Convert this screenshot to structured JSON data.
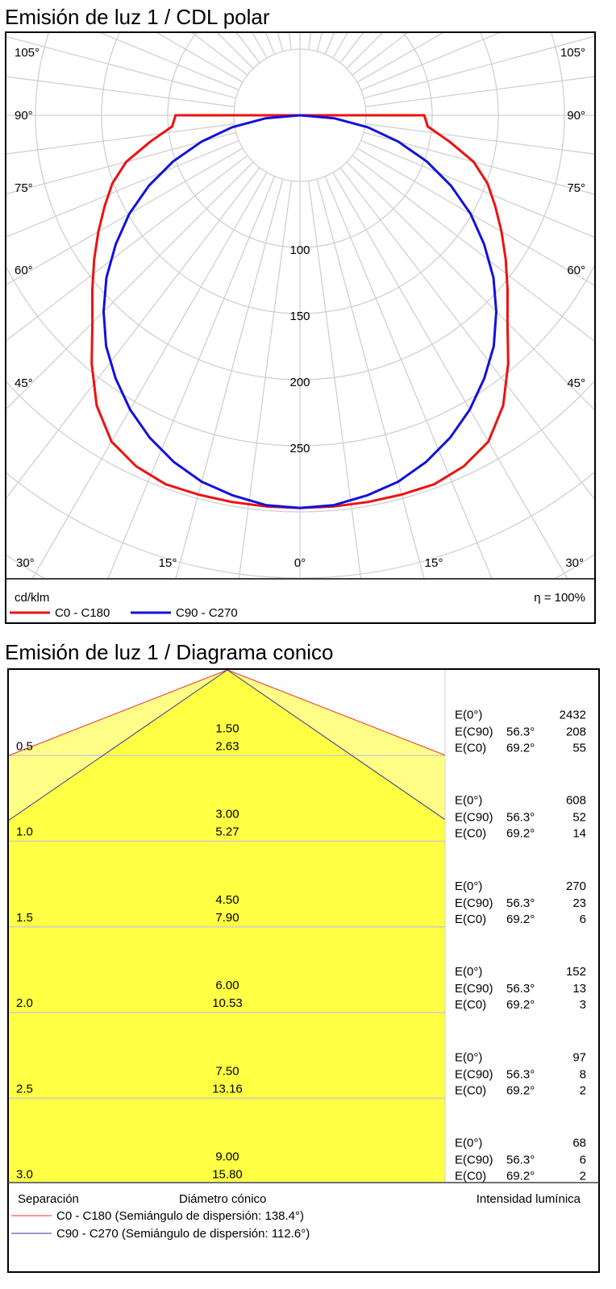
{
  "polar": {
    "title": "Emisión de luz 1 / CDL polar",
    "unit": "cd/klm",
    "efficiency": "η = 100%",
    "angle_labels": {
      "a105": "105°",
      "a90": "90°",
      "a75": "75°",
      "a60": "60°",
      "a45": "45°",
      "a30": "30°",
      "a15": "15°",
      "a0": "0°"
    },
    "radial_labels": [
      "100",
      "150",
      "200",
      "250"
    ],
    "legend": [
      {
        "label": "C0 - C180",
        "color": "#ee1111"
      },
      {
        "label": "C90 - C270",
        "color": "#1111dd"
      }
    ]
  },
  "chart_data": [
    {
      "type": "polar",
      "title": "Emisión de luz 1 / CDL polar",
      "unit": "cd/klm",
      "radial_ticks": [
        100,
        150,
        200,
        250
      ],
      "angle_ticks": [
        0,
        15,
        30,
        45,
        60,
        75,
        90,
        105
      ],
      "grid": true,
      "legend_placement": "bottom",
      "angles": [
        0,
        5,
        10,
        15,
        20,
        25,
        30,
        35,
        40,
        45,
        50,
        55,
        60,
        65,
        70,
        75,
        80,
        85,
        90
      ],
      "series": [
        {
          "name": "C0 - C180",
          "color": "#ee1111",
          "values": [
            297,
            297,
            297,
            297,
            297,
            293,
            285,
            268,
            245,
            222,
            205,
            190,
            176,
            163,
            151,
            136,
            115,
            97,
            94
          ]
        },
        {
          "name": "C90 - C270",
          "color": "#1111dd",
          "values": [
            297,
            296,
            292,
            287,
            279,
            269,
            257,
            243,
            228,
            210,
            191,
            170,
            149,
            126,
            102,
            77,
            52,
            26,
            0
          ]
        }
      ]
    }
  ],
  "cone": {
    "title": "Emisión de luz 1 / Diagrama conico",
    "colors": {
      "c0": "#ee3333",
      "c90": "#333399",
      "outer_fill": "#ffff88",
      "inner_fill": "#ffff44"
    },
    "half_angle_c0": 69.2,
    "half_angle_c90": 56.3,
    "rows": [
      {
        "h": "0.5",
        "d90": "1.50",
        "d0": "2.63",
        "e0_label": "E(0°)",
        "e0": "2432",
        "e90_label": "E(C90)",
        "e90_ang": "56.3°",
        "e90": "208",
        "ec0_label": "E(C0)",
        "ec0_ang": "69.2°",
        "ec0": "55"
      },
      {
        "h": "1.0",
        "d90": "3.00",
        "d0": "5.27",
        "e0_label": "E(0°)",
        "e0": "608",
        "e90_label": "E(C90)",
        "e90_ang": "56.3°",
        "e90": "52",
        "ec0_label": "E(C0)",
        "ec0_ang": "69.2°",
        "ec0": "14"
      },
      {
        "h": "1.5",
        "d90": "4.50",
        "d0": "7.90",
        "e0_label": "E(0°)",
        "e0": "270",
        "e90_label": "E(C90)",
        "e90_ang": "56.3°",
        "e90": "23",
        "ec0_label": "E(C0)",
        "ec0_ang": "69.2°",
        "ec0": "6"
      },
      {
        "h": "2.0",
        "d90": "6.00",
        "d0": "10.53",
        "e0_label": "E(0°)",
        "e0": "152",
        "e90_label": "E(C90)",
        "e90_ang": "56.3°",
        "e90": "13",
        "ec0_label": "E(C0)",
        "ec0_ang": "69.2°",
        "ec0": "3"
      },
      {
        "h": "2.5",
        "d90": "7.50",
        "d0": "13.16",
        "e0_label": "E(0°)",
        "e0": "97",
        "e90_label": "E(C90)",
        "e90_ang": "56.3°",
        "e90": "8",
        "ec0_label": "E(C0)",
        "ec0_ang": "69.2°",
        "ec0": "2"
      },
      {
        "h": "3.0",
        "d90": "9.00",
        "d0": "15.80",
        "e0_label": "E(0°)",
        "e0": "68",
        "e90_label": "E(C90)",
        "e90_ang": "56.3°",
        "e90": "6",
        "ec0_label": "E(C0)",
        "ec0_ang": "69.2°",
        "ec0": "2"
      }
    ],
    "footer": {
      "separation": "Separación",
      "diameter": "Diámetro cónico",
      "intensity": "Intensidad lumínica",
      "legend_c0": "C0 - C180 (Semiángulo de dispersión: 138.4°)",
      "legend_c90": "C90 - C270 (Semiángulo de dispersión: 112.6°)"
    }
  }
}
